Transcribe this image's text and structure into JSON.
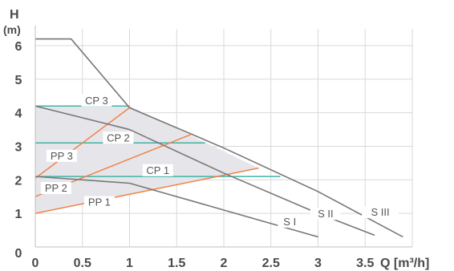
{
  "chart_data": {
    "type": "line",
    "title": "",
    "xlabel": "Q [m³/h]",
    "ylabel": "H (m)",
    "xlim": [
      0,
      4
    ],
    "ylim": [
      0,
      6.5
    ],
    "x_ticks": [
      "0",
      "0.5",
      "1",
      "1.5",
      "2",
      "2.5",
      "3",
      "3.5"
    ],
    "y_ticks": [
      "0",
      "1",
      "2",
      "3",
      "4",
      "5",
      "6"
    ],
    "grid": true,
    "colors": {
      "pump_curve": "#777777",
      "proportional_pressure": "#f0834a",
      "constant_pressure": "#3fb4a4",
      "operating_area": "#e6e6ea"
    },
    "operating_area": [
      [
        0,
        1
      ],
      [
        0,
        4.2
      ],
      [
        1,
        4.2
      ],
      [
        2.37,
        2.35
      ],
      [
        0,
        1
      ]
    ],
    "series": [
      {
        "name": "S I",
        "group": "pump",
        "points": [
          [
            0,
            2.1
          ],
          [
            1,
            1.9
          ],
          [
            2,
            1.1
          ],
          [
            2.5,
            0.7
          ],
          [
            3,
            0.3
          ]
        ]
      },
      {
        "name": "S II",
        "group": "pump",
        "points": [
          [
            0,
            4.2
          ],
          [
            1,
            3.5
          ],
          [
            2,
            2.2
          ],
          [
            3,
            1.0
          ],
          [
            3.6,
            0.35
          ]
        ]
      },
      {
        "name": "S III",
        "group": "pump",
        "points": [
          [
            0,
            6.2
          ],
          [
            0.38,
            6.2
          ],
          [
            1,
            4.15
          ],
          [
            2,
            2.95
          ],
          [
            3,
            1.65
          ],
          [
            3.9,
            0.3
          ]
        ]
      },
      {
        "name": "PP 1",
        "group": "pp",
        "points": [
          [
            0,
            1.0
          ],
          [
            2.37,
            2.35
          ]
        ]
      },
      {
        "name": "PP 2",
        "group": "pp",
        "points": [
          [
            0,
            1.5
          ],
          [
            1.65,
            3.35
          ]
        ]
      },
      {
        "name": "PP 3",
        "group": "pp",
        "points": [
          [
            0,
            2.05
          ],
          [
            1,
            4.15
          ]
        ]
      },
      {
        "name": "CP 1",
        "group": "cp",
        "points": [
          [
            0,
            2.1
          ],
          [
            2.6,
            2.1
          ]
        ]
      },
      {
        "name": "CP 2",
        "group": "cp",
        "points": [
          [
            0,
            3.1
          ],
          [
            1.8,
            3.1
          ]
        ]
      },
      {
        "name": "CP 3",
        "group": "cp",
        "points": [
          [
            0,
            4.2
          ],
          [
            1,
            4.2
          ]
        ]
      }
    ],
    "labels": [
      {
        "text": "S I",
        "x": 2.7,
        "y": 0.72
      },
      {
        "text": "S II",
        "x": 3.08,
        "y": 0.95
      },
      {
        "text": "S III",
        "x": 3.66,
        "y": 1.0
      },
      {
        "text": "PP 1",
        "x": 0.68,
        "y": 1.3
      },
      {
        "text": "PP 2",
        "x": 0.22,
        "y": 1.72
      },
      {
        "text": "PP 3",
        "x": 0.28,
        "y": 2.68
      },
      {
        "text": "CP 1",
        "x": 1.3,
        "y": 2.25
      },
      {
        "text": "CP 2",
        "x": 0.88,
        "y": 3.22
      },
      {
        "text": "CP 3",
        "x": 0.65,
        "y": 4.33
      }
    ]
  }
}
